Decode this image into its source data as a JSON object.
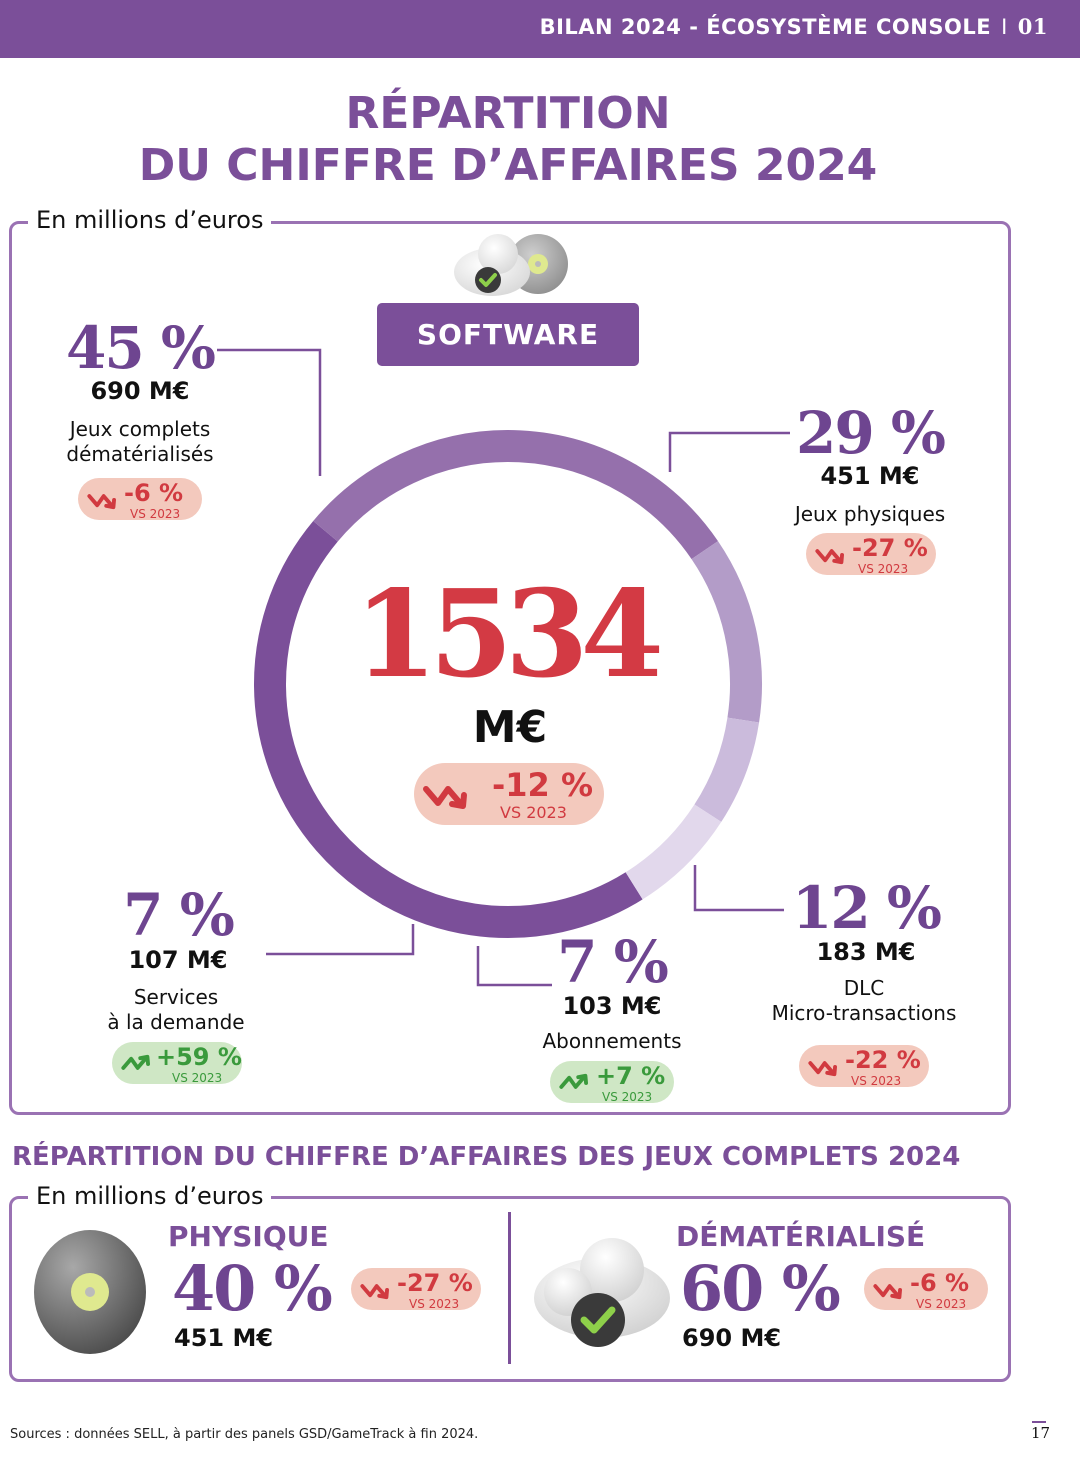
{
  "header": {
    "left": "BILAN 2024 - ",
    "bold": "ÉCOSYSTÈME CONSOLE",
    "sep": "I",
    "page": "01"
  },
  "title": {
    "line1": "RÉPARTITION",
    "line2": "DU CHIFFRE D’AFFAIRES 2024"
  },
  "unit_label": "En millions d’euros",
  "software_label": "SOFTWARE",
  "colors": {
    "accent": "#7b4f99",
    "negative": "#d13a40",
    "positive": "#3a9a3c",
    "center_number": "#d33a44"
  },
  "center": {
    "total": "1534",
    "unit": "M€",
    "change": "-12 %",
    "vs": "VS 2023",
    "direction": "down"
  },
  "segments": [
    {
      "pct": "45 %",
      "amount": "690 M€",
      "label1": "Jeux complets",
      "label2": "dématérialisés",
      "change": "-6 %",
      "vs": "VS 2023",
      "direction": "down"
    },
    {
      "pct": "29 %",
      "amount": "451 M€",
      "label1": "Jeux physiques",
      "label2": "",
      "change": "-27 %",
      "vs": "VS 2023",
      "direction": "down"
    },
    {
      "pct": "12 %",
      "amount": "183 M€",
      "label1": "DLC",
      "label2": "Micro-transactions",
      "change": "-22 %",
      "vs": "VS 2023",
      "direction": "down"
    },
    {
      "pct": "7 %",
      "amount": "103 M€",
      "label1": "Abonnements",
      "label2": "",
      "change": "+7 %",
      "vs": "VS 2023",
      "direction": "up"
    },
    {
      "pct": "7 %",
      "amount": "107 M€",
      "label1": "Services",
      "label2": "à la demande",
      "change": "+59 %",
      "vs": "VS 2023",
      "direction": "up"
    }
  ],
  "chart_data": [
    {
      "type": "pie",
      "title": "RÉPARTITION DU CHIFFRE D’AFFAIRES 2024",
      "unit": "En millions d’euros",
      "total": 1534,
      "categories": [
        "Jeux complets dématérialisés",
        "Jeux physiques",
        "DLC Micro-transactions",
        "Abonnements",
        "Services à la demande"
      ],
      "values": [
        690,
        451,
        183,
        103,
        107
      ],
      "percent": [
        45,
        29,
        12,
        7,
        7
      ],
      "change_vs_2023_percent": [
        -6,
        -27,
        -22,
        7,
        59
      ],
      "slice_colors": [
        "#7b4f99",
        "#9570ac",
        "#b39cc8",
        "#cbbbdc",
        "#e2d8ec"
      ]
    },
    {
      "type": "pie",
      "title": "RÉPARTITION DU CHIFFRE D’AFFAIRES DES JEUX COMPLETS 2024",
      "unit": "En millions d’euros",
      "categories": [
        "PHYSIQUE",
        "DÉMATÉRIALISÉ"
      ],
      "values": [
        451,
        690
      ],
      "percent": [
        40,
        60
      ],
      "change_vs_2023_percent": [
        -27,
        -6
      ]
    }
  ],
  "sub": {
    "title": "RÉPARTITION DU CHIFFRE D’AFFAIRES DES JEUX COMPLETS 2024",
    "unit_label": "En millions d’euros",
    "physique": {
      "title": "PHYSIQUE",
      "pct": "40 %",
      "amount": "451 M€",
      "change": "-27 %",
      "vs": "VS 2023",
      "direction": "down"
    },
    "dematerialise": {
      "title": "DÉMATÉRIALISÉ",
      "pct": "60 %",
      "amount": "690 M€",
      "change": "-6 %",
      "vs": "VS 2023",
      "direction": "down"
    }
  },
  "sources": "Sources : données SELL, à partir des panels GSD/GameTrack à fin 2024.",
  "page_number": "17"
}
